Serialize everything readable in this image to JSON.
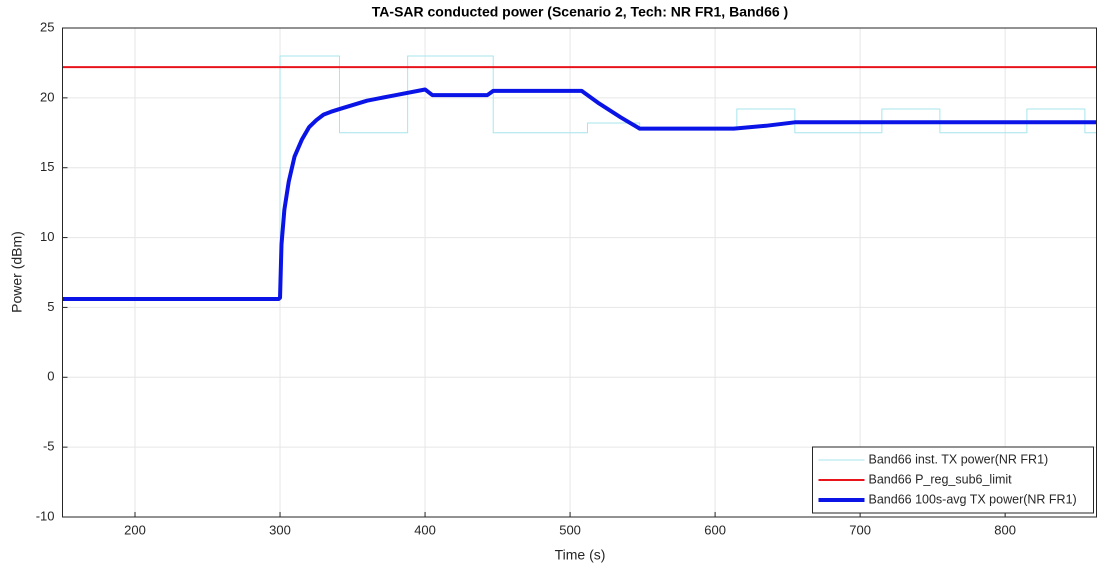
{
  "chart_data": {
    "type": "line",
    "title": "TA-SAR conducted power (Scenario 2, Tech: NR FR1, Band66 )",
    "xlabel": "Time (s)",
    "ylabel": "Power (dBm)",
    "xlim": [
      150,
      863
    ],
    "ylim": [
      -10,
      25
    ],
    "xticks": [
      200,
      300,
      400,
      500,
      600,
      700,
      800
    ],
    "yticks": [
      -10,
      -5,
      0,
      5,
      10,
      15,
      20,
      25
    ],
    "grid": true,
    "legend": "lower right",
    "series": [
      {
        "name": "Band66 inst. TX power(NR FR1)",
        "color": "#a6e6ee",
        "width": 1,
        "x": [
          150,
          300,
          300,
          341,
          341,
          388,
          388,
          447,
          447,
          512,
          512,
          548,
          548,
          615,
          615,
          655,
          655,
          715,
          715,
          755,
          755,
          815,
          815,
          855,
          855,
          863
        ],
        "values": [
          5.6,
          5.6,
          23,
          23,
          17.5,
          17.5,
          23,
          23,
          17.5,
          17.5,
          18.2,
          18.2,
          17.8,
          17.8,
          19.2,
          19.2,
          17.5,
          17.5,
          19.2,
          19.2,
          17.5,
          17.5,
          19.2,
          19.2,
          17.5,
          17.5
        ]
      },
      {
        "name": "Band66 P_reg_sub6_limit",
        "color": "#e8141c",
        "width": 2,
        "x": [
          150,
          863
        ],
        "values": [
          22.2,
          22.2
        ]
      },
      {
        "name": "Band66 100s-avg TX power(NR FR1)",
        "color": "#0a14e6",
        "width": 4,
        "x": [
          150,
          299,
          300,
          301,
          303,
          306,
          310,
          315,
          320,
          325,
          330,
          335,
          341,
          360,
          380,
          400,
          405,
          443,
          447,
          508,
          520,
          535,
          548,
          613,
          635,
          655,
          863
        ],
        "values": [
          5.6,
          5.6,
          5.7,
          9.5,
          12,
          14,
          15.8,
          17,
          17.9,
          18.4,
          18.8,
          19.0,
          19.2,
          19.8,
          20.2,
          20.6,
          20.2,
          20.2,
          20.5,
          20.5,
          19.6,
          18.6,
          17.8,
          17.8,
          18.0,
          18.25,
          18.25
        ]
      }
    ]
  }
}
